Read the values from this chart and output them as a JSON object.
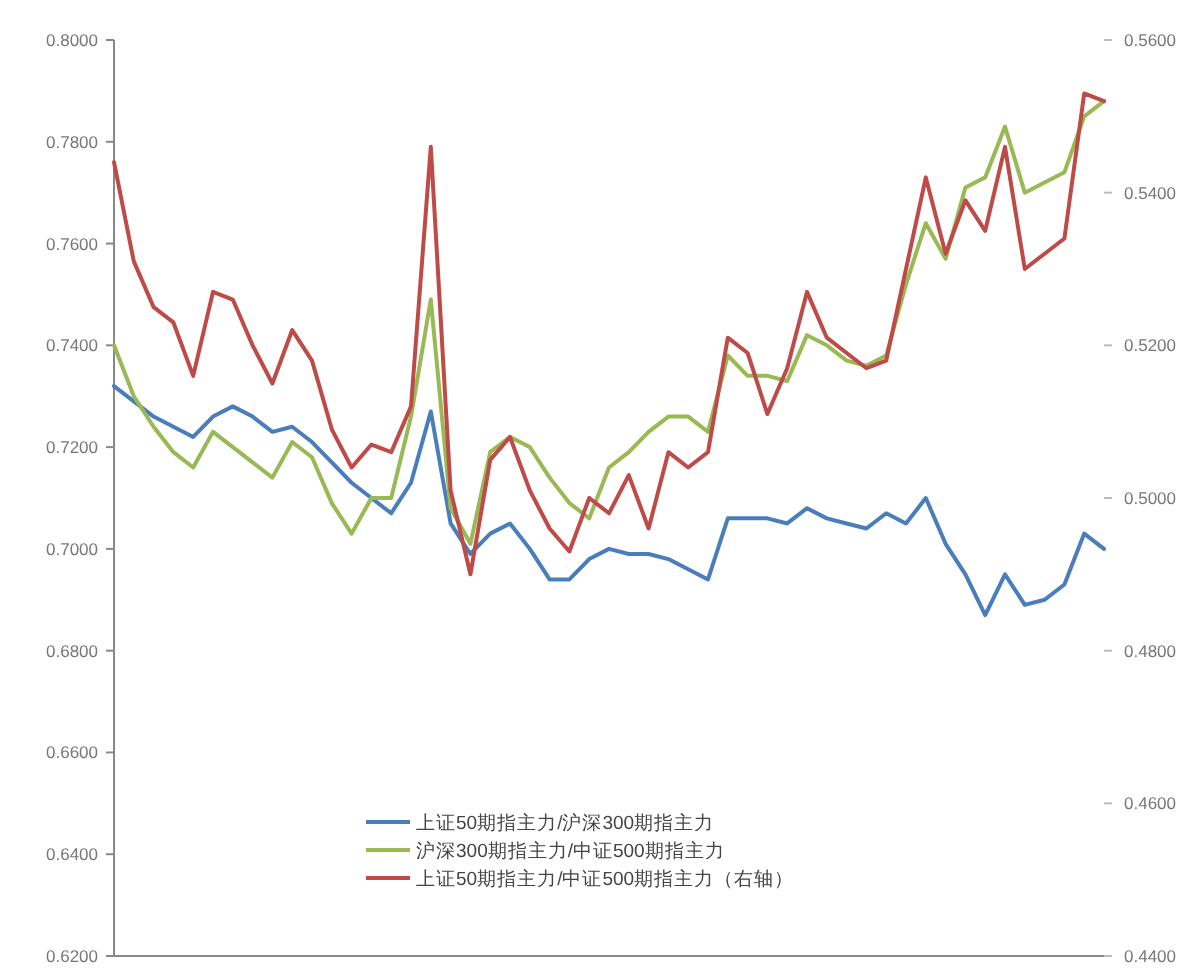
{
  "chart_data": {
    "type": "line",
    "categories": [
      null,
      null,
      null,
      null,
      null,
      null,
      null,
      null,
      null,
      null,
      null,
      null,
      null,
      null,
      null,
      null,
      null,
      null,
      null,
      null,
      null,
      null,
      null,
      null,
      null,
      null,
      null,
      null,
      null,
      null,
      null,
      null,
      null,
      null,
      null,
      null,
      null,
      null,
      null,
      null,
      null,
      null,
      null,
      null,
      null,
      null,
      null,
      null,
      null,
      null,
      null
    ],
    "ylim": [
      0.62,
      0.8
    ],
    "yticks": [
      {
        "value": 0.62,
        "label": "0.6200"
      },
      {
        "value": 0.64,
        "label": "0.6400"
      },
      {
        "value": 0.66,
        "label": "0.6600"
      },
      {
        "value": 0.68,
        "label": "0.6800"
      },
      {
        "value": 0.7,
        "label": "0.7000"
      },
      {
        "value": 0.72,
        "label": "0.7200"
      },
      {
        "value": 0.74,
        "label": "0.7400"
      },
      {
        "value": 0.76,
        "label": "0.7600"
      },
      {
        "value": 0.78,
        "label": "0.7800"
      },
      {
        "value": 0.8,
        "label": "0.8000"
      }
    ],
    "y2lim": [
      0.44,
      0.56
    ],
    "y2ticks": [
      {
        "value": 0.44,
        "label": "0.4400"
      },
      {
        "value": 0.46,
        "label": "0.4600"
      },
      {
        "value": 0.48,
        "label": "0.4800"
      },
      {
        "value": 0.5,
        "label": "0.5000"
      },
      {
        "value": 0.52,
        "label": "0.5200"
      },
      {
        "value": 0.54,
        "label": "0.5400"
      },
      {
        "value": 0.56,
        "label": "0.5600"
      }
    ],
    "tick_labels": "y",
    "grid": false,
    "legend": "bottom",
    "marker": "none",
    "line_style": "solid",
    "series": [
      {
        "name": "上证50期指主力/沪深300期指主力",
        "color": "#4a7ebb",
        "values": [
          0.732,
          0.729,
          0.726,
          0.724,
          0.722,
          0.726,
          0.728,
          0.726,
          0.723,
          0.724,
          0.721,
          0.717,
          0.713,
          0.71,
          0.707,
          0.713,
          0.727,
          0.705,
          0.699,
          0.703,
          0.705,
          0.7,
          0.694,
          0.694,
          0.698,
          0.7,
          0.699,
          0.699,
          0.698,
          0.696,
          0.694,
          0.706,
          0.706,
          0.706,
          0.705,
          0.708,
          0.706,
          0.705,
          0.704,
          0.707,
          0.705,
          0.71,
          0.701,
          0.695,
          0.687,
          0.695,
          0.689,
          0.69,
          0.693,
          0.703,
          0.7
        ]
      },
      {
        "name": "沪深300期指主力/中证500期指主力",
        "color": "#98b954",
        "values": [
          0.74,
          0.73,
          0.724,
          0.719,
          0.716,
          0.723,
          0.72,
          0.717,
          0.714,
          0.721,
          0.718,
          0.709,
          0.703,
          0.71,
          0.71,
          0.726,
          0.749,
          0.708,
          0.701,
          0.719,
          0.722,
          0.72,
          0.714,
          0.709,
          0.706,
          0.716,
          0.719,
          0.723,
          0.726,
          0.726,
          0.723,
          0.738,
          0.734,
          0.734,
          0.733,
          0.742,
          0.74,
          0.737,
          0.736,
          0.738,
          0.752,
          0.764,
          0.757,
          0.771,
          0.773,
          0.783,
          0.77,
          0.772,
          0.774,
          0.785,
          0.788
        ]
      },
      {
        "name": "上证50期指主力/中证500期指主力（右轴）",
        "color": "#be4b48",
        "axis": "y2",
        "values": [
          0.544,
          0.531,
          0.525,
          0.523,
          0.516,
          0.527,
          0.526,
          0.52,
          0.515,
          0.522,
          0.518,
          0.509,
          0.504,
          0.507,
          0.506,
          0.512,
          0.546,
          0.501,
          0.49,
          0.505,
          0.508,
          0.501,
          0.496,
          0.493,
          0.5,
          0.498,
          0.503,
          0.496,
          0.506,
          0.504,
          0.506,
          0.521,
          0.519,
          0.511,
          0.517,
          0.527,
          0.521,
          0.519,
          0.517,
          0.518,
          0.53,
          0.542,
          0.532,
          0.539,
          0.535,
          0.546,
          0.53,
          0.532,
          0.534,
          0.553,
          0.552
        ]
      }
    ]
  }
}
